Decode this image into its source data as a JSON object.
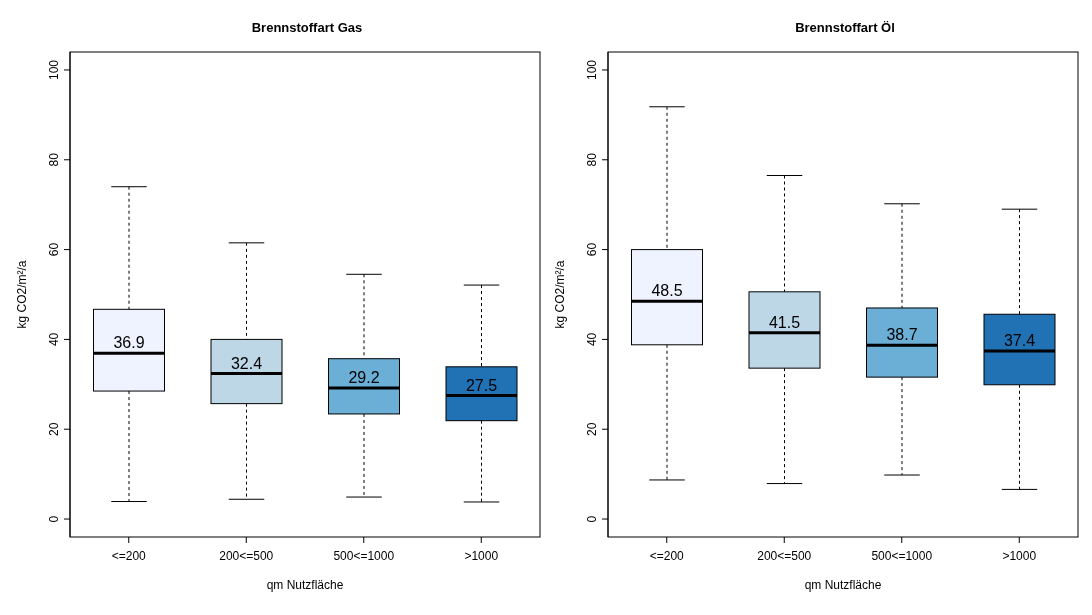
{
  "chart_data": [
    {
      "type": "box",
      "title": "Brennstoffart Gas",
      "xlabel": "qm Nutzfläche",
      "ylabel": "kg CO2/m²/a",
      "categories": [
        "<=200",
        "200<=500",
        "500<=1000",
        ">1000"
      ],
      "boxes": [
        {
          "low": 3.9,
          "q1": 28.5,
          "median": 36.9,
          "q3": 46.7,
          "high": 74.0
        },
        {
          "low": 4.4,
          "q1": 25.7,
          "median": 32.4,
          "q3": 40.0,
          "high": 61.5
        },
        {
          "low": 4.9,
          "q1": 23.4,
          "median": 29.2,
          "q3": 35.7,
          "high": 54.5
        },
        {
          "low": 3.8,
          "q1": 21.9,
          "median": 27.5,
          "q3": 33.9,
          "high": 52.1
        }
      ],
      "annotations": [
        {
          "text": "36.9",
          "x": "<=200",
          "y": 36.9
        },
        {
          "text": "32.4",
          "x": "200<=500",
          "y": 32.4
        },
        {
          "text": "29.2",
          "x": "500<=1000",
          "y": 29.2
        },
        {
          "text": "27.5",
          "x": ">1000",
          "y": 27.5
        }
      ],
      "colors": [
        "#eff3ff",
        "#bdd7e7",
        "#6baed6",
        "#2171b5"
      ],
      "ylim": [
        -4,
        104
      ],
      "yticks": [
        0,
        20,
        40,
        60,
        80,
        100
      ],
      "grid": false
    },
    {
      "type": "box",
      "title": "Brennstoffart Öl",
      "xlabel": "qm Nutzfläche",
      "ylabel": "kg CO2/m²/a",
      "categories": [
        "<=200",
        "200<=500",
        "500<=1000",
        ">1000"
      ],
      "boxes": [
        {
          "low": 8.7,
          "q1": 38.8,
          "median": 48.5,
          "q3": 60.0,
          "high": 91.8
        },
        {
          "low": 7.9,
          "q1": 33.6,
          "median": 41.5,
          "q3": 50.6,
          "high": 76.5
        },
        {
          "low": 9.8,
          "q1": 31.6,
          "median": 38.7,
          "q3": 47.0,
          "high": 70.2
        },
        {
          "low": 6.6,
          "q1": 29.9,
          "median": 37.4,
          "q3": 45.6,
          "high": 69.0
        }
      ],
      "annotations": [
        {
          "text": "48.5",
          "x": "<=200",
          "y": 48.5
        },
        {
          "text": "41.5",
          "x": "200<=500",
          "y": 41.5
        },
        {
          "text": "38.7",
          "x": "500<=1000",
          "y": 38.7
        },
        {
          "text": "37.4",
          "x": ">1000",
          "y": 37.4
        }
      ],
      "colors": [
        "#eff3ff",
        "#bdd7e7",
        "#6baed6",
        "#2171b5"
      ],
      "ylim": [
        -4,
        104
      ],
      "yticks": [
        0,
        20,
        40,
        60,
        80,
        100
      ],
      "grid": false
    }
  ]
}
